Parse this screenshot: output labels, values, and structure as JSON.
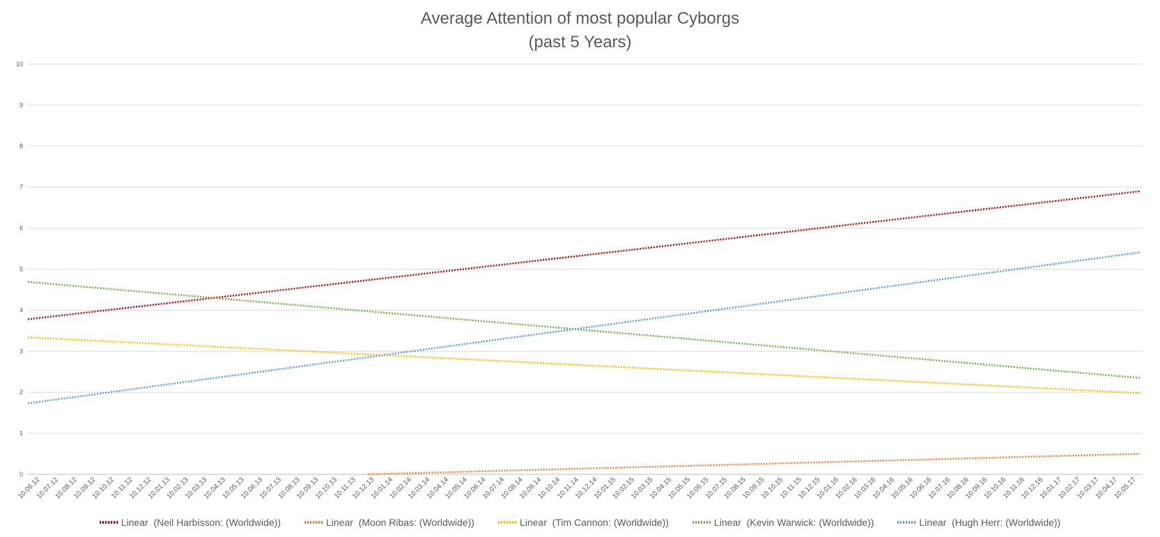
{
  "chart_data": {
    "type": "line",
    "title_lines": [
      "Average Attention of most popular Cyborgs",
      "(past 5 Years)"
    ],
    "xlabel": "",
    "ylabel": "",
    "ylim": [
      0,
      10
    ],
    "y_ticks": [
      0,
      1,
      2,
      3,
      4,
      5,
      6,
      7,
      8,
      9,
      10
    ],
    "grid": "horizontal",
    "legend_position": "bottom",
    "line_style": "dotted",
    "x_tick_labels": [
      "10.06.12",
      "10.07.12",
      "10.08.12",
      "10.09.12",
      "10.10.12",
      "10.11.12",
      "10.12.12",
      "10.01.13",
      "10.02.13",
      "10.03.13",
      "10.04.13",
      "10.05.13",
      "10.06.13",
      "10.07.13",
      "10.08.13",
      "10.09.13",
      "10.10.13",
      "10.11.13",
      "10.12.13",
      "10.01.14",
      "10.02.14",
      "10.03.14",
      "10.04.14",
      "10.05.14",
      "10.06.14",
      "10.07.14",
      "10.08.14",
      "10.09.14",
      "10.10.14",
      "10.11.14",
      "10.12.14",
      "10.01.15",
      "10.02.15",
      "10.03.15",
      "10.04.15",
      "10.05.15",
      "10.06.15",
      "10.07.15",
      "10.08.15",
      "10.09.15",
      "10.10.15",
      "10.11.15",
      "10.12.15",
      "10.01.16",
      "10.02.16",
      "10.03.16",
      "10.04.16",
      "10.05.16",
      "10.06.16",
      "10.07.16",
      "10.08.16",
      "10.09.16",
      "10.10.16",
      "10.11.16",
      "10.12.16",
      "10.01.17",
      "10.02.17",
      "10.03.17",
      "10.04.17",
      "10.05.17"
    ],
    "x_range": [
      "10.06.12",
      "10.06.17"
    ],
    "series": [
      {
        "name": "Linear  (Neil Harbisson: (Worldwide))",
        "color": "#c00000",
        "start": 3.78,
        "end": 6.9
      },
      {
        "name": "Linear  (Moon Ribas: (Worldwide))",
        "color": "#ed7d31",
        "start": -0.22,
        "end": 0.5
      },
      {
        "name": "Linear  (Tim Cannon: (Worldwide))",
        "color": "#ffc000",
        "start": 3.34,
        "end": 1.98
      },
      {
        "name": "Linear  (Kevin Warwick: (Worldwide))",
        "color": "#70ad47",
        "start": 4.69,
        "end": 2.35
      },
      {
        "name": "Linear  (Hugh Herr: (Worldwide))",
        "color": "#5b9bd5",
        "start": 1.73,
        "end": 5.41
      }
    ]
  }
}
